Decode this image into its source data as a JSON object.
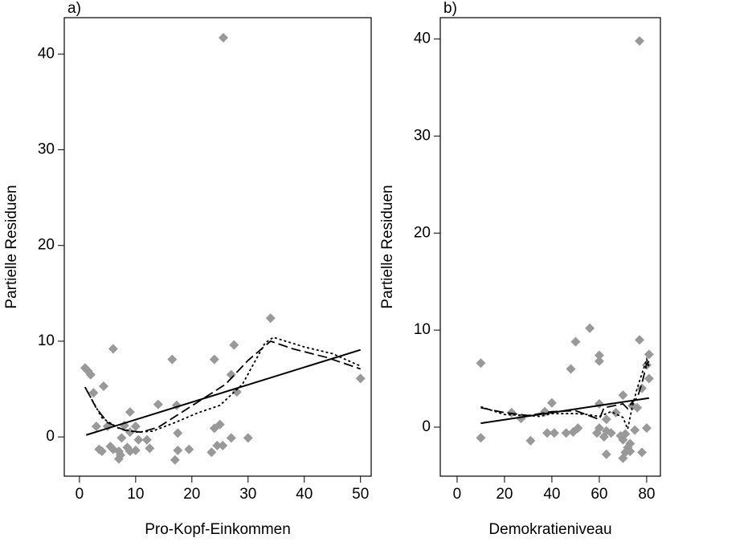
{
  "chart_data": [
    {
      "type": "scatter",
      "label": "a)",
      "x_label": "Pro-Kopf-Einkommen",
      "y_label": "Partielle Residuen",
      "xlim": [
        -2.7,
        51.9
      ],
      "ylim": [
        -4.1,
        43.8
      ],
      "xticks": [
        0,
        10,
        20,
        30,
        40,
        50
      ],
      "yticks": [
        0,
        10,
        20,
        30,
        40
      ],
      "series": [
        {
          "type": "scatter",
          "marker": "diamond",
          "color": "#999999",
          "x": [
            1,
            1.5,
            2,
            2.5,
            3,
            3.5,
            4,
            4.3,
            5,
            5.5,
            6,
            6,
            7,
            7,
            7.3,
            7.5,
            8,
            8.5,
            9,
            9,
            9,
            10,
            10,
            10.5,
            12,
            12.5,
            14,
            16.5,
            17,
            17.3,
            17.5,
            17.5,
            19.5,
            23.5,
            24,
            24,
            24.5,
            25,
            25.5,
            25.6,
            27,
            27,
            27.5,
            28,
            30,
            34,
            50
          ],
          "values": [
            7.2,
            6.9,
            6.5,
            4.6,
            1.1,
            -1.3,
            -1.5,
            5.3,
            1.1,
            -1,
            9.2,
            -1.3,
            -1.5,
            -2.3,
            -1.9,
            -0.1,
            1.2,
            -1.1,
            -1.5,
            0.5,
            2.6,
            -1.4,
            1.1,
            -0.3,
            -0.3,
            -1.2,
            3.4,
            8.1,
            -2.4,
            3.3,
            -1.4,
            0.4,
            -1.3,
            -1.6,
            0.9,
            8.1,
            -0.9,
            1.3,
            -0.9,
            41.7,
            6.5,
            -0.1,
            9.6,
            4.7,
            -0.1,
            12.4,
            6.1
          ]
        },
        {
          "type": "line",
          "dash": "solid",
          "color": "#000000",
          "x": [
            1.2,
            50
          ],
          "values": [
            0.2,
            9.1
          ]
        },
        {
          "type": "line",
          "dash": "dashed",
          "color": "#000000",
          "x": [
            1,
            3,
            5,
            8,
            11,
            14,
            18,
            22,
            26,
            30,
            34,
            38,
            44,
            50
          ],
          "values": [
            5.2,
            3,
            1.5,
            0.7,
            0.5,
            1,
            2.5,
            4,
            5.5,
            8,
            10,
            9.2,
            8.3,
            7.1
          ]
        },
        {
          "type": "line",
          "dash": "dotted",
          "color": "#000000",
          "x": [
            1,
            4,
            7,
            10,
            13,
            17,
            21,
            25,
            29,
            33,
            34.5,
            40,
            45,
            50
          ],
          "values": [
            5.2,
            2,
            0.9,
            0.5,
            0.6,
            1.5,
            2.5,
            3.3,
            5.5,
            9.8,
            10.4,
            9.4,
            8.7,
            7.4
          ]
        }
      ]
    },
    {
      "type": "scatter",
      "label": "b)",
      "x_label": "Demokratieniveau",
      "y_label": "Partielle Residuen",
      "xlim": [
        -7.1,
        85.8
      ],
      "ylim": [
        -5.05,
        42.2
      ],
      "xticks": [
        0,
        20,
        40,
        60,
        80
      ],
      "yticks": [
        0,
        10,
        20,
        30,
        40
      ],
      "series": [
        {
          "type": "scatter",
          "marker": "diamond",
          "color": "#999999",
          "x": [
            10,
            10,
            23,
            27,
            31,
            37,
            38,
            40,
            41,
            46,
            48,
            49,
            50,
            51,
            56,
            59,
            60,
            60,
            60,
            60,
            62,
            63,
            63,
            63,
            65,
            67,
            69,
            70,
            70,
            70,
            71,
            71,
            72,
            73,
            73,
            74,
            75,
            76,
            77,
            77,
            78,
            78,
            80,
            80,
            81,
            81
          ],
          "values": [
            6.6,
            -1.1,
            1.5,
            0.9,
            -1.4,
            1.6,
            -0.6,
            2.5,
            -0.6,
            -0.6,
            6,
            -0.5,
            8.8,
            -0.1,
            10.2,
            -0.6,
            7.4,
            6.8,
            2.4,
            -0.1,
            -1,
            0.8,
            -2.8,
            -0.4,
            -0.6,
            1.5,
            -0.9,
            -1.3,
            -3.2,
            3.3,
            -0.7,
            -2.6,
            -2.1,
            -2.5,
            -1.7,
            2.2,
            -0.3,
            2,
            39.8,
            9,
            -2.6,
            4,
            -0.1,
            6.4,
            7.5,
            5
          ]
        },
        {
          "type": "line",
          "dash": "solid",
          "color": "#000000",
          "x": [
            10,
            81
          ],
          "values": [
            0.4,
            3
          ]
        },
        {
          "type": "line",
          "dash": "dashed",
          "color": "#000000",
          "x": [
            10,
            20,
            30,
            40,
            50,
            60,
            62,
            66,
            70,
            72,
            74,
            76,
            78,
            80,
            81
          ],
          "values": [
            2,
            1.5,
            1.2,
            1.6,
            1.7,
            0.8,
            2,
            2.2,
            2.4,
            1.9,
            2.6,
            3,
            4.5,
            6.5,
            6.8
          ]
        },
        {
          "type": "line",
          "dash": "dotted",
          "color": "#000000",
          "x": [
            10,
            20,
            30,
            35,
            40,
            50,
            55,
            60,
            65,
            70,
            72,
            74,
            76,
            78,
            80,
            81
          ],
          "values": [
            2.1,
            1.3,
            1.2,
            1.1,
            1.4,
            1.4,
            1.3,
            1.1,
            1.6,
            1,
            -0.2,
            2.2,
            4,
            5.5,
            7,
            6.2
          ]
        }
      ]
    }
  ]
}
